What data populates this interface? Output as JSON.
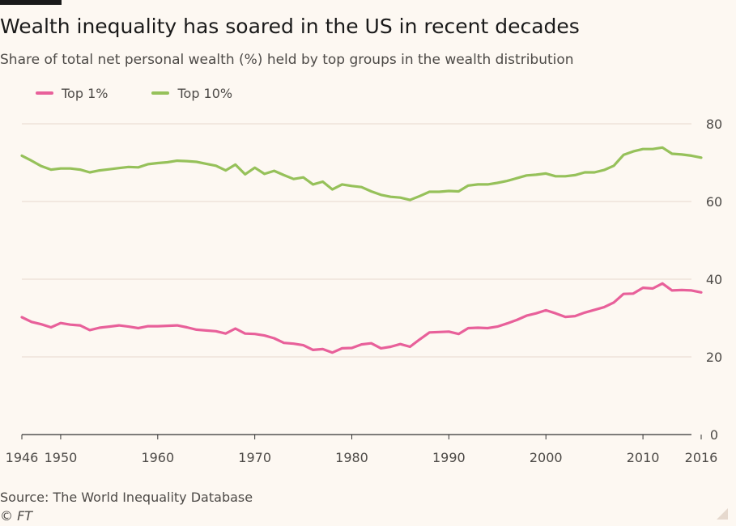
{
  "title": "Wealth inequality has soared in the US in recent decades",
  "subtitle": "Share of total net personal wealth (%) held by top groups in the wealth distribution",
  "source": "Source: The World Inequality Database",
  "copyright": "© FT",
  "colors": {
    "top1": "#e8609a",
    "top10": "#96c15a",
    "grid": "#e6d9ce",
    "axis": "#333333"
  },
  "chart_data": {
    "type": "line",
    "title": "Wealth inequality has soared in the US in recent decades",
    "subtitle": "Share of total net personal wealth (%) held by top groups in the wealth distribution",
    "xlabel": "",
    "ylabel": "",
    "xlim": [
      1946,
      2016
    ],
    "ylim": [
      0,
      80
    ],
    "y_ticks": [
      0,
      20,
      40,
      60,
      80
    ],
    "x_ticks": [
      1946,
      1950,
      1960,
      1970,
      1980,
      1990,
      2000,
      2010,
      2016
    ],
    "y_axis_side": "right",
    "grid": true,
    "legend_position": "top-left",
    "x": [
      1946,
      1947,
      1948,
      1949,
      1950,
      1951,
      1952,
      1953,
      1954,
      1955,
      1956,
      1957,
      1958,
      1959,
      1960,
      1961,
      1962,
      1963,
      1964,
      1965,
      1966,
      1967,
      1968,
      1969,
      1970,
      1971,
      1972,
      1973,
      1974,
      1975,
      1976,
      1977,
      1978,
      1979,
      1980,
      1981,
      1982,
      1983,
      1984,
      1985,
      1986,
      1987,
      1988,
      1989,
      1990,
      1991,
      1992,
      1993,
      1994,
      1995,
      1996,
      1997,
      1998,
      1999,
      2000,
      2001,
      2002,
      2003,
      2004,
      2005,
      2006,
      2007,
      2008,
      2009,
      2010,
      2011,
      2012,
      2013,
      2014,
      2015,
      2016
    ],
    "series": [
      {
        "name": "Top 1%",
        "color": "#e8609a",
        "values": [
          30.2,
          29.0,
          28.4,
          27.6,
          28.7,
          28.3,
          28.1,
          26.9,
          27.5,
          27.8,
          28.1,
          27.8,
          27.4,
          27.9,
          27.9,
          28.0,
          28.1,
          27.6,
          27.0,
          26.8,
          26.6,
          26.0,
          27.3,
          26.0,
          25.9,
          25.5,
          24.8,
          23.6,
          23.4,
          23.0,
          21.8,
          22.0,
          21.1,
          22.2,
          22.3,
          23.2,
          23.5,
          22.2,
          22.6,
          23.3,
          22.6,
          24.5,
          26.3,
          26.4,
          26.5,
          25.9,
          27.4,
          27.5,
          27.4,
          27.8,
          28.6,
          29.5,
          30.6,
          31.2,
          32.0,
          31.2,
          30.3,
          30.5,
          31.4,
          32.1,
          32.8,
          34.0,
          36.2,
          36.3,
          37.8,
          37.6,
          38.9,
          37.1,
          37.2,
          37.1,
          36.6
        ]
      },
      {
        "name": "Top 10%",
        "color": "#96c15a",
        "values": [
          71.8,
          70.5,
          69.1,
          68.2,
          68.5,
          68.5,
          68.2,
          67.5,
          68.0,
          68.3,
          68.6,
          68.9,
          68.8,
          69.6,
          69.9,
          70.1,
          70.5,
          70.4,
          70.2,
          69.7,
          69.2,
          68.0,
          69.5,
          67.0,
          68.7,
          67.1,
          67.9,
          66.8,
          65.8,
          66.2,
          64.4,
          65.1,
          63.1,
          64.4,
          64.0,
          63.7,
          62.6,
          61.7,
          61.2,
          61.0,
          60.4,
          61.4,
          62.5,
          62.5,
          62.7,
          62.6,
          64.1,
          64.4,
          64.4,
          64.8,
          65.3,
          66.0,
          66.7,
          66.9,
          67.2,
          66.5,
          66.5,
          66.8,
          67.5,
          67.5,
          68.1,
          69.2,
          72.0,
          72.9,
          73.5,
          73.5,
          73.9,
          72.3,
          72.1,
          71.8,
          71.3
        ]
      }
    ]
  }
}
